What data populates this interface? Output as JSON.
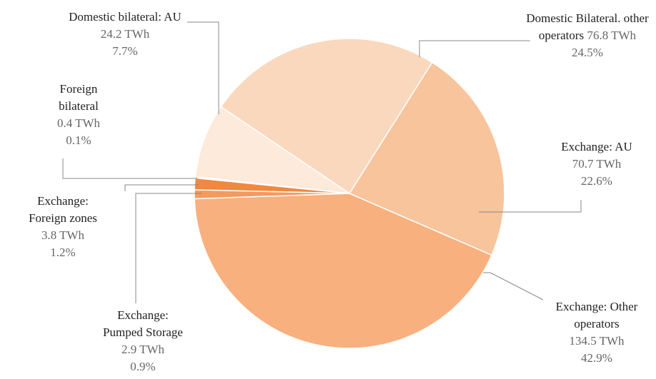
{
  "chart_data": {
    "type": "pie",
    "categories": [
      "Domestic Bilateral. other operators",
      "Exchange: AU",
      "Exchange: Other operators",
      "Exchange: Pumped Storage",
      "Exchange: Foreign zones",
      "Foreign bilateral",
      "Domestic bilateral: AU"
    ],
    "values": [
      76.8,
      70.7,
      134.5,
      2.9,
      3.8,
      0.4,
      24.2
    ],
    "value_labels": [
      "76.8 TWh",
      "70.7 TWh",
      "134.5 TWh",
      "2.9 TWh",
      "3.8 TWh",
      "0.4 TWh",
      "24.2 TWh"
    ],
    "percentages": [
      24.5,
      22.6,
      42.9,
      0.9,
      1.2,
      0.1,
      7.7
    ],
    "percentage_labels": [
      "24.5%",
      "22.6%",
      "42.9%",
      "0.9%",
      "1.2%",
      "0.1%",
      "7.7%"
    ],
    "colors": [
      "#fad8bd",
      "#f8c49c",
      "#f7b07e",
      "#f49a5c",
      "#f0883f",
      "#e2702e",
      "#fdeadb"
    ]
  }
}
